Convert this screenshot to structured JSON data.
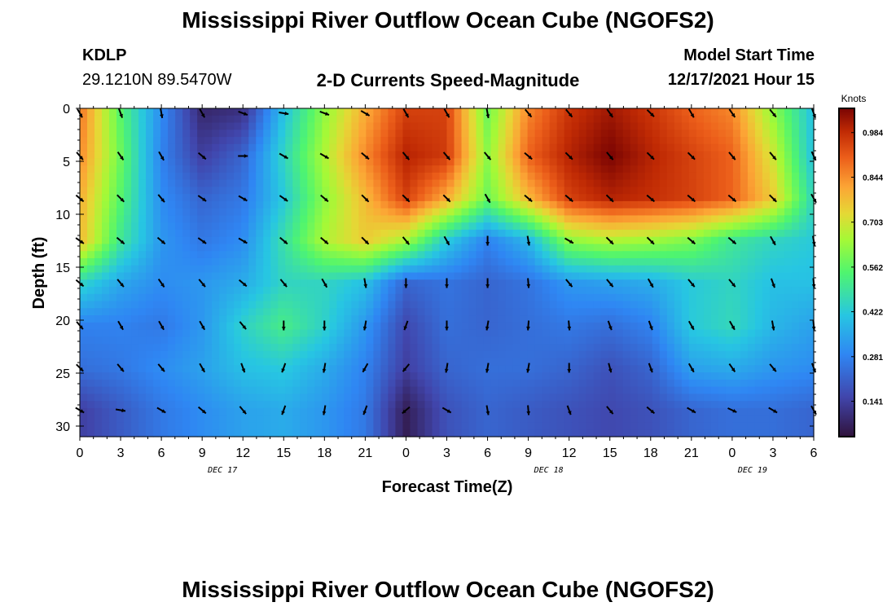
{
  "header": {
    "title": "Mississippi River Outflow Ocean Cube (NGOFS2)",
    "station": "KDLP",
    "location": "29.1210N  89.5470W",
    "subtitle": "2-D Currents Speed-Magnitude",
    "model_start_label": "Model Start Time",
    "model_start_value": "12/17/2021 Hour 15"
  },
  "footer": {
    "title": "Mississippi River Outflow Ocean Cube (NGOFS2)"
  },
  "chart_data": {
    "type": "heatmap",
    "xlabel": "Forecast Time(Z)",
    "ylabel": "Depth (ft)",
    "x_tick_labels": [
      "0",
      "3",
      "6",
      "9",
      "12",
      "15",
      "18",
      "21",
      "0",
      "3",
      "6",
      "9",
      "12",
      "15",
      "18",
      "21",
      "0",
      "3",
      "6"
    ],
    "date_labels": [
      {
        "label": "DEC 17",
        "tick_index": 3.5
      },
      {
        "label": "DEC 18",
        "tick_index": 11.5
      },
      {
        "label": "DEC 19",
        "tick_index": 16.5
      }
    ],
    "y_ticks": [
      0,
      5,
      10,
      15,
      20,
      25,
      30
    ],
    "ylim": [
      0,
      31
    ],
    "xlim_hours": [
      0,
      54
    ],
    "colorbar": {
      "unit": "Knots",
      "ticks": [
        "0.141",
        "0.281",
        "0.422",
        "0.562",
        "0.703",
        "0.844",
        "0.984"
      ],
      "range": [
        0.03,
        1.06
      ]
    },
    "arrow_times_hours": [
      0,
      3,
      6,
      9,
      12,
      15,
      18,
      21,
      24,
      27,
      30,
      33,
      36,
      39,
      42,
      45,
      48,
      51,
      54
    ],
    "arrow_depths_ft": [
      0,
      4.5,
      8.5,
      12.5,
      16.5,
      20.5,
      24.5,
      28.5
    ],
    "speed_grid_knots": [
      [
        0.88,
        0.55,
        0.3,
        0.08,
        0.1,
        0.4,
        0.62,
        0.8,
        0.95,
        0.95,
        0.58,
        0.85,
        0.97,
        1.02,
        0.97,
        0.9,
        0.85,
        0.62,
        0.4
      ],
      [
        0.85,
        0.58,
        0.28,
        0.14,
        0.22,
        0.45,
        0.66,
        0.85,
        1.0,
        0.96,
        0.62,
        0.9,
        1.0,
        1.06,
        1.0,
        0.95,
        0.9,
        0.7,
        0.4
      ],
      [
        0.8,
        0.55,
        0.3,
        0.22,
        0.26,
        0.42,
        0.62,
        0.78,
        0.95,
        0.8,
        0.58,
        0.78,
        0.95,
        1.0,
        0.98,
        0.95,
        0.9,
        0.75,
        0.45
      ],
      [
        0.78,
        0.5,
        0.32,
        0.26,
        0.3,
        0.48,
        0.66,
        0.75,
        0.65,
        0.42,
        0.28,
        0.38,
        0.62,
        0.66,
        0.64,
        0.6,
        0.5,
        0.45,
        0.42
      ],
      [
        0.45,
        0.35,
        0.3,
        0.32,
        0.36,
        0.45,
        0.45,
        0.4,
        0.22,
        0.25,
        0.22,
        0.25,
        0.32,
        0.34,
        0.36,
        0.42,
        0.45,
        0.4,
        0.4
      ],
      [
        0.28,
        0.28,
        0.26,
        0.32,
        0.44,
        0.52,
        0.44,
        0.32,
        0.16,
        0.24,
        0.22,
        0.24,
        0.26,
        0.24,
        0.28,
        0.42,
        0.46,
        0.38,
        0.34
      ],
      [
        0.24,
        0.26,
        0.3,
        0.34,
        0.4,
        0.42,
        0.36,
        0.28,
        0.14,
        0.22,
        0.24,
        0.24,
        0.22,
        0.18,
        0.22,
        0.34,
        0.36,
        0.32,
        0.3
      ],
      [
        0.14,
        0.2,
        0.26,
        0.3,
        0.34,
        0.36,
        0.32,
        0.26,
        0.06,
        0.18,
        0.22,
        0.2,
        0.18,
        0.16,
        0.18,
        0.22,
        0.24,
        0.24,
        0.22
      ]
    ],
    "arrow_directions_deg": [
      [
        150,
        160,
        170,
        150,
        110,
        100,
        110,
        120,
        150,
        150,
        170,
        140,
        140,
        145,
        135,
        150,
        145,
        140,
        160
      ],
      [
        140,
        145,
        150,
        130,
        90,
        120,
        120,
        130,
        140,
        140,
        140,
        130,
        135,
        140,
        135,
        135,
        140,
        140,
        155
      ],
      [
        130,
        135,
        140,
        125,
        120,
        125,
        130,
        135,
        135,
        135,
        150,
        130,
        130,
        135,
        130,
        130,
        130,
        135,
        150
      ],
      [
        125,
        130,
        130,
        125,
        120,
        130,
        130,
        135,
        140,
        150,
        180,
        170,
        120,
        135,
        135,
        130,
        130,
        150,
        170
      ],
      [
        130,
        140,
        145,
        140,
        130,
        140,
        150,
        170,
        180,
        180,
        180,
        175,
        140,
        140,
        150,
        140,
        140,
        160,
        175
      ],
      [
        140,
        150,
        150,
        150,
        140,
        180,
        180,
        190,
        200,
        180,
        190,
        185,
        175,
        160,
        160,
        150,
        150,
        170,
        175
      ],
      [
        135,
        140,
        140,
        150,
        160,
        200,
        190,
        210,
        220,
        190,
        190,
        190,
        180,
        165,
        160,
        150,
        145,
        140,
        160
      ],
      [
        120,
        100,
        120,
        130,
        140,
        200,
        190,
        200,
        230,
        120,
        170,
        175,
        160,
        140,
        130,
        120,
        115,
        120,
        150
      ]
    ]
  }
}
